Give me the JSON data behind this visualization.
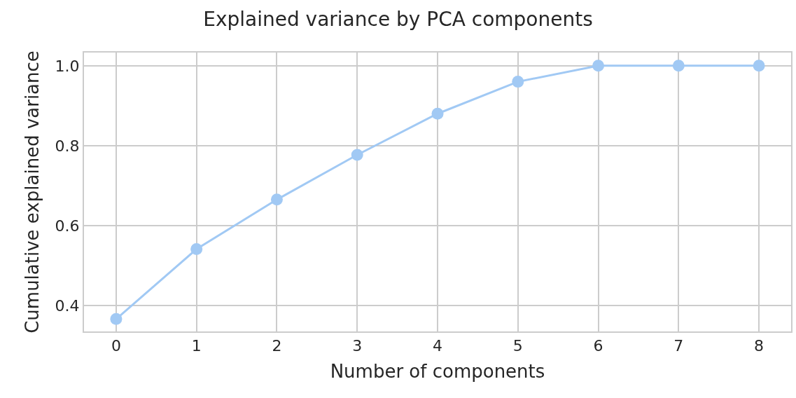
{
  "chart_data": {
    "type": "line",
    "title": "Explained variance by PCA components",
    "xlabel": "Number of components",
    "ylabel": "Cumulative explained variance",
    "x": [
      0,
      1,
      2,
      3,
      4,
      5,
      6,
      7,
      8
    ],
    "series": [
      {
        "color": "#a1c9f4",
        "values": [
          0.366,
          0.541,
          0.665,
          0.777,
          0.88,
          0.96,
          1.0,
          1.0,
          1.0
        ]
      }
    ],
    "xlim": [
      -0.4,
      8.4
    ],
    "xticks": [
      0,
      1,
      2,
      3,
      4,
      5,
      6,
      7,
      8
    ],
    "ylim": [
      0.335,
      1.033
    ],
    "yticks": [
      {
        "value": 0.4,
        "label": "0.4"
      },
      {
        "value": 0.6,
        "label": "0.6"
      },
      {
        "value": 0.8,
        "label": "0.8"
      },
      {
        "value": 1.0,
        "label": "1.0"
      }
    ],
    "grid": true,
    "marker": "circle",
    "line_style": "solid"
  }
}
